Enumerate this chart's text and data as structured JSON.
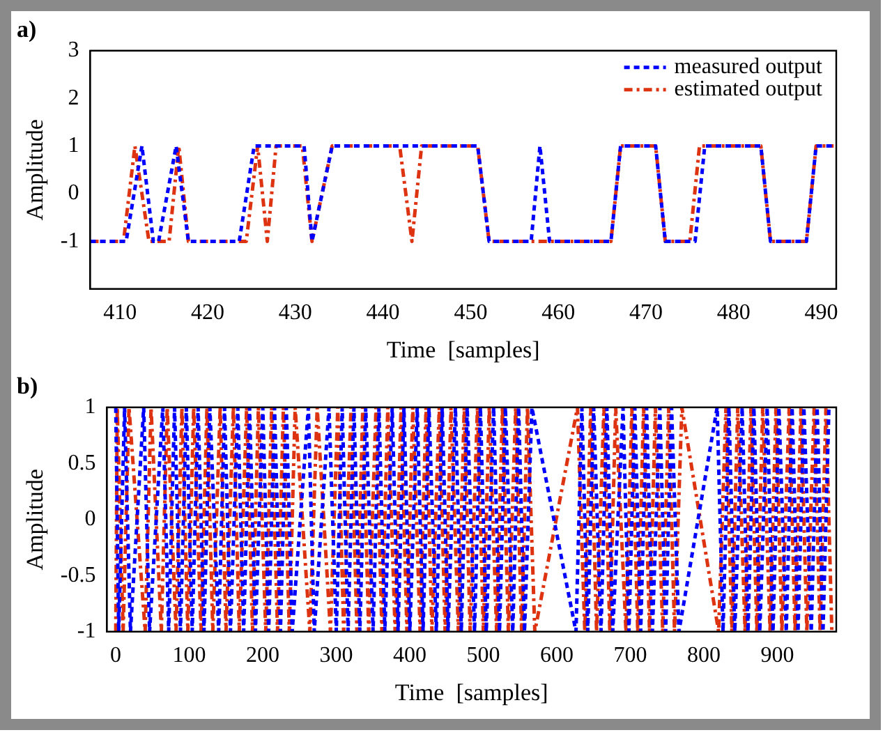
{
  "chart_data": [
    {
      "type": "line",
      "title": "a)",
      "xlabel": "Time  [samples]",
      "ylabel": "Amplitude",
      "xlim": [
        406.6,
        491.7
      ],
      "xticks": [
        410,
        420,
        430,
        440,
        450,
        460,
        470,
        480,
        490
      ],
      "ylim": [
        -2,
        3
      ],
      "yticks": [
        -1,
        0,
        1,
        2,
        3
      ],
      "grid": false,
      "legend": "top right",
      "series": [
        {
          "name": "measured output",
          "color": "#0000ff",
          "line_style": "dotted",
          "x": [
            406.6,
            410.7,
            412.5,
            413.8,
            414.4,
            416.4,
            417.8,
            423.6,
            425.3,
            431.0,
            431.9,
            434.2,
            450.8,
            452.1,
            456.9,
            457.9,
            459.0,
            466.0,
            467.1,
            471.1,
            472.2,
            475.6,
            476.7,
            483.1,
            484.2,
            488.3,
            489.4,
            491.4
          ],
          "values": [
            -1,
            -1,
            1,
            -1,
            -1,
            1,
            -1,
            -1,
            1,
            1,
            -1,
            1,
            1,
            -1,
            -1,
            1,
            -1,
            -1,
            1,
            1,
            -1,
            -1,
            1,
            1,
            -1,
            -1,
            1,
            1
          ]
        },
        {
          "name": "estimated output",
          "color": "#dd3311",
          "line_style": "dashed",
          "x": [
            406.6,
            410.4,
            411.7,
            413.3,
            415.6,
            416.7,
            417.8,
            424.4,
            425.7,
            426.8,
            427.8,
            430.8,
            431.9,
            434.2,
            441.9,
            443.3,
            444.4,
            450.8,
            452.1,
            466.0,
            467.1,
            471.1,
            472.2,
            475.0,
            476.1,
            483.1,
            484.2,
            488.3,
            489.4,
            491.4
          ],
          "values": [
            -1,
            -1,
            1,
            -1,
            -1,
            1,
            -1,
            -1,
            1,
            -1,
            1,
            1,
            -1,
            1,
            1,
            -1,
            1,
            1,
            -1,
            -1,
            1,
            1,
            -1,
            -1,
            1,
            1,
            -1,
            -1,
            1,
            1
          ]
        }
      ]
    },
    {
      "type": "line",
      "title": "b)",
      "xlabel": "Time  [samples]",
      "ylabel": "Amplitude",
      "xlim": [
        -12,
        980
      ],
      "xticks": [
        0,
        100,
        200,
        300,
        400,
        500,
        600,
        700,
        800,
        900
      ],
      "ylim": [
        -1,
        1
      ],
      "yticks": [
        -1,
        -0.5,
        0,
        0.5,
        1
      ],
      "grid": false,
      "series": [
        {
          "color": "#0000ff",
          "line_style": "dotted",
          "x": [
            0,
            4,
            12,
            20,
            38,
            46,
            64,
            72,
            80,
            88,
            96,
            104,
            112,
            120,
            128,
            140,
            148,
            156,
            166,
            174,
            182,
            190,
            200,
            208,
            216,
            224,
            232,
            240,
            262,
            270,
            290,
            300,
            308,
            316,
            324,
            332,
            340,
            350,
            358,
            366,
            376,
            384,
            392,
            400,
            410,
            418,
            426,
            436,
            444,
            452,
            462,
            470,
            478,
            488,
            496,
            504,
            514,
            522,
            530,
            540,
            548,
            556,
            566,
            626,
            634,
            642,
            650,
            660,
            668,
            676,
            690,
            698,
            706,
            714,
            722,
            730,
            740,
            748,
            756,
            766,
            818,
            826,
            834,
            842,
            852,
            860,
            868,
            876,
            886,
            894,
            902,
            912,
            920,
            928,
            936,
            946,
            954,
            962,
            970
          ],
          "values": [
            1,
            -1,
            1,
            -1,
            1,
            -1,
            1,
            -1,
            1,
            -1,
            1,
            -1,
            1,
            -1,
            1,
            -1,
            1,
            -1,
            1,
            -1,
            1,
            -1,
            1,
            -1,
            1,
            -1,
            1,
            -1,
            1,
            -1,
            1,
            -1,
            1,
            -1,
            1,
            -1,
            1,
            -1,
            1,
            -1,
            1,
            -1,
            1,
            -1,
            1,
            -1,
            1,
            -1,
            1,
            -1,
            1,
            -1,
            1,
            -1,
            1,
            -1,
            1,
            -1,
            1,
            -1,
            1,
            -1,
            1,
            -1,
            1,
            -1,
            1,
            -1,
            1,
            -1,
            1,
            -1,
            1,
            -1,
            1,
            -1,
            1,
            -1,
            1,
            -1,
            1,
            -1,
            1,
            -1,
            1,
            -1,
            1,
            -1,
            1,
            -1,
            1,
            -1,
            1,
            -1,
            1,
            -1,
            1,
            -1,
            1
          ]
        },
        {
          "color": "#dd3311",
          "line_style": "dashed",
          "x": [
            0,
            2,
            10,
            18,
            40,
            48,
            62,
            70,
            82,
            90,
            98,
            106,
            116,
            124,
            132,
            142,
            150,
            160,
            168,
            178,
            186,
            194,
            204,
            212,
            220,
            228,
            236,
            244,
            264,
            274,
            292,
            302,
            310,
            320,
            328,
            336,
            344,
            354,
            362,
            370,
            380,
            388,
            396,
            404,
            414,
            422,
            430,
            440,
            448,
            456,
            466,
            474,
            482,
            492,
            500,
            508,
            518,
            526,
            534,
            544,
            552,
            560,
            570,
            628,
            638,
            646,
            654,
            664,
            672,
            680,
            694,
            702,
            710,
            718,
            726,
            734,
            744,
            752,
            760,
            770,
            820,
            830,
            838,
            846,
            856,
            864,
            872,
            880,
            890,
            898,
            906,
            916,
            924,
            932,
            940,
            950,
            958,
            966,
            974
          ],
          "values": [
            -1,
            1,
            -1,
            1,
            -1,
            1,
            -1,
            1,
            -1,
            1,
            -1,
            1,
            -1,
            1,
            -1,
            1,
            -1,
            1,
            -1,
            1,
            -1,
            1,
            -1,
            1,
            -1,
            1,
            -1,
            1,
            -1,
            1,
            -1,
            1,
            -1,
            1,
            -1,
            1,
            -1,
            1,
            -1,
            1,
            -1,
            1,
            -1,
            1,
            -1,
            1,
            -1,
            1,
            -1,
            1,
            -1,
            1,
            -1,
            1,
            -1,
            1,
            -1,
            1,
            -1,
            1,
            -1,
            1,
            -1,
            1,
            -1,
            1,
            -1,
            1,
            -1,
            1,
            -1,
            1,
            -1,
            1,
            -1,
            1,
            -1,
            1,
            -1,
            1,
            -1,
            1,
            -1,
            1,
            -1,
            1,
            -1,
            1,
            -1,
            1,
            -1,
            1,
            -1,
            1,
            -1,
            1,
            -1,
            1,
            -1
          ]
        }
      ]
    }
  ]
}
